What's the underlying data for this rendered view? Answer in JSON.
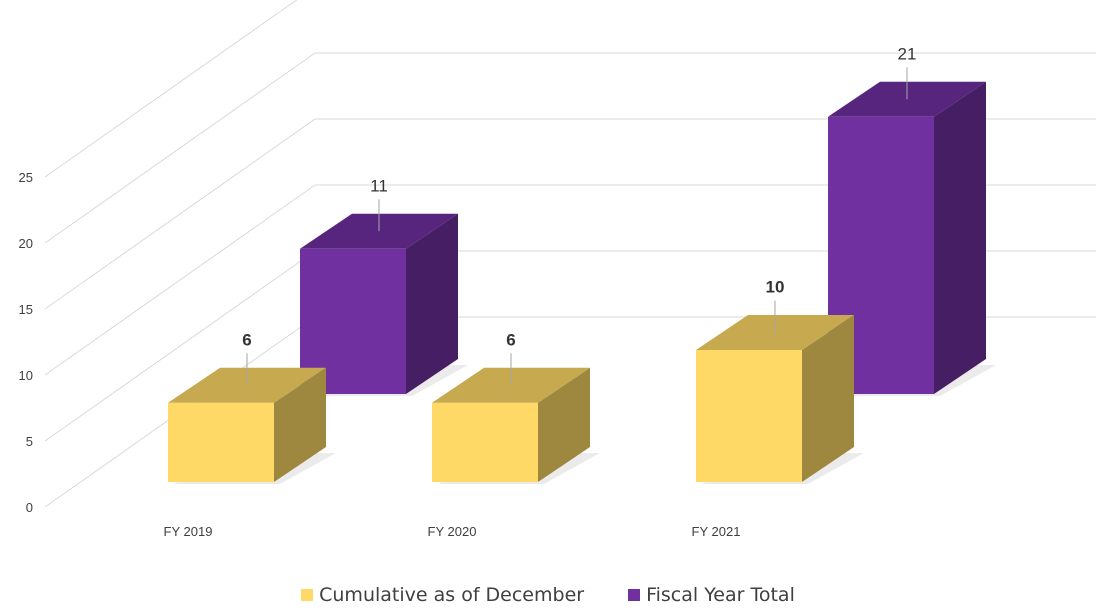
{
  "chart_data": {
    "type": "bar",
    "categories": [
      "FY 2019",
      "FY 2020",
      "FY 2021"
    ],
    "series": [
      {
        "name": "Cumulative as of December",
        "values": [
          6,
          6,
          10
        ],
        "color": "#FFD966"
      },
      {
        "name": "Fiscal Year Total",
        "values": [
          11,
          null,
          21
        ],
        "color": "#7030A0"
      }
    ],
    "data_labels": {
      "Cumulative as of December": [
        "6",
        "6",
        "10"
      ],
      "Fiscal Year Total": [
        "11",
        "",
        "21"
      ]
    },
    "yticks": [
      "0",
      "5",
      "10",
      "15",
      "20",
      "25"
    ],
    "ylim": [
      0,
      25
    ],
    "grid": true,
    "legend_position": "bottom",
    "style": "3d-column"
  }
}
